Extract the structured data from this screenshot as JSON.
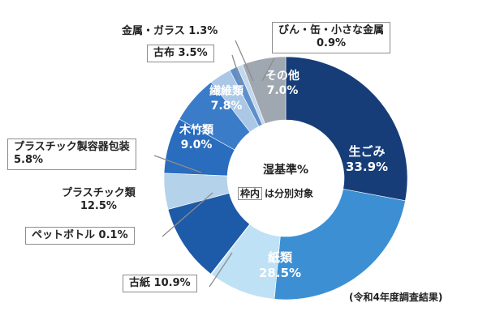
{
  "chart_data": {
    "type": "pie",
    "donut": true,
    "start_angle_deg": 0,
    "clockwise": true,
    "slices": [
      {
        "name": "生ごみ",
        "value": 33.9,
        "value_label": "33.9%",
        "color": "#163d78",
        "segregated": false
      },
      {
        "name": "紙類",
        "value": 28.5,
        "value_label": "28.5%",
        "color": "#3d8fd3",
        "segregated": false
      },
      {
        "name": "古紙",
        "value": 10.9,
        "value_label": "10.9%",
        "color": "#bfe1f5",
        "segregated": true
      },
      {
        "name": "ペットボトル",
        "value": 0.1,
        "value_label": "0.1%",
        "color": "#d4e6f4",
        "segregated": true
      },
      {
        "name": "プラスチック類",
        "value": 12.5,
        "value_label": "12.5%",
        "color": "#1d5aa8",
        "segregated": false
      },
      {
        "name": "プラスチック製容器包装",
        "value": 5.8,
        "value_label": "5.8%",
        "color": "#b4d2ea",
        "segregated": true
      },
      {
        "name": "木竹類",
        "value": 9.0,
        "value_label": "9.0%",
        "color": "#2a6cbd",
        "segregated": false
      },
      {
        "name": "繊維類",
        "value": 7.8,
        "value_label": "7.8%",
        "color": "#3a7cc8",
        "segregated": false
      },
      {
        "name": "古布",
        "value": 3.5,
        "value_label": "3.5%",
        "color": "#aac8e6",
        "segregated": true
      },
      {
        "name": "金属・ガラス",
        "value": 1.3,
        "value_label": "1.3%",
        "color": "#5e8fcc",
        "segregated": false
      },
      {
        "name": "びん・缶・小さな金属",
        "value": 0.9,
        "value_label": "0.9%",
        "color": "#c4d8ec",
        "segregated": true
      },
      {
        "name": "その他",
        "value": 7.0,
        "value_label": "7.0%",
        "color": "#9fa7b0",
        "segregated": false
      }
    ],
    "center_title": "湿基準%",
    "center_note_tag": "枠内",
    "center_note_text": "は分別対象",
    "footnote": "(令和4年度調査結果)"
  }
}
